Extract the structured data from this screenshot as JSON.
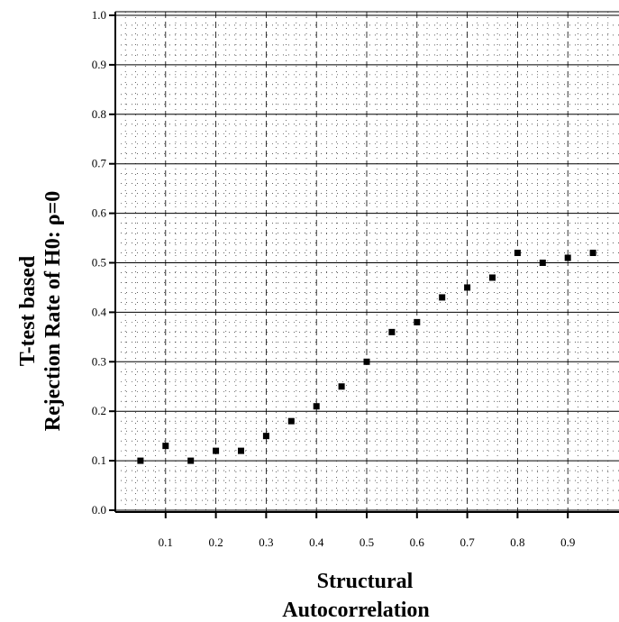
{
  "chart_data": {
    "type": "scatter",
    "xlabel": [
      "Structural",
      "Autocorrelation"
    ],
    "ylabel": [
      "T-test based",
      "Rejection Rate of H0: ρ=0"
    ],
    "xlim": [
      0.0,
      1.0
    ],
    "ylim": [
      0.0,
      1.0
    ],
    "x_ticks": [
      "0.1",
      "0.2",
      "0.3",
      "0.4",
      "0.5",
      "0.6",
      "0.7",
      "0.8",
      "0.9"
    ],
    "y_ticks": [
      "0.0",
      "0.1",
      "0.2",
      "0.3",
      "0.4",
      "0.5",
      "0.6",
      "0.7",
      "0.8",
      "0.9",
      "1.0"
    ],
    "grid": true,
    "x": [
      0.05,
      0.1,
      0.15,
      0.2,
      0.25,
      0.3,
      0.35,
      0.4,
      0.45,
      0.5,
      0.55,
      0.6,
      0.65,
      0.7,
      0.75,
      0.8,
      0.85,
      0.9,
      0.95
    ],
    "y": [
      0.1,
      0.13,
      0.1,
      0.12,
      0.12,
      0.15,
      0.18,
      0.21,
      0.25,
      0.3,
      0.36,
      0.38,
      0.43,
      0.45,
      0.47,
      0.52,
      0.5,
      0.51,
      0.52
    ],
    "marker_color": "#000000"
  }
}
